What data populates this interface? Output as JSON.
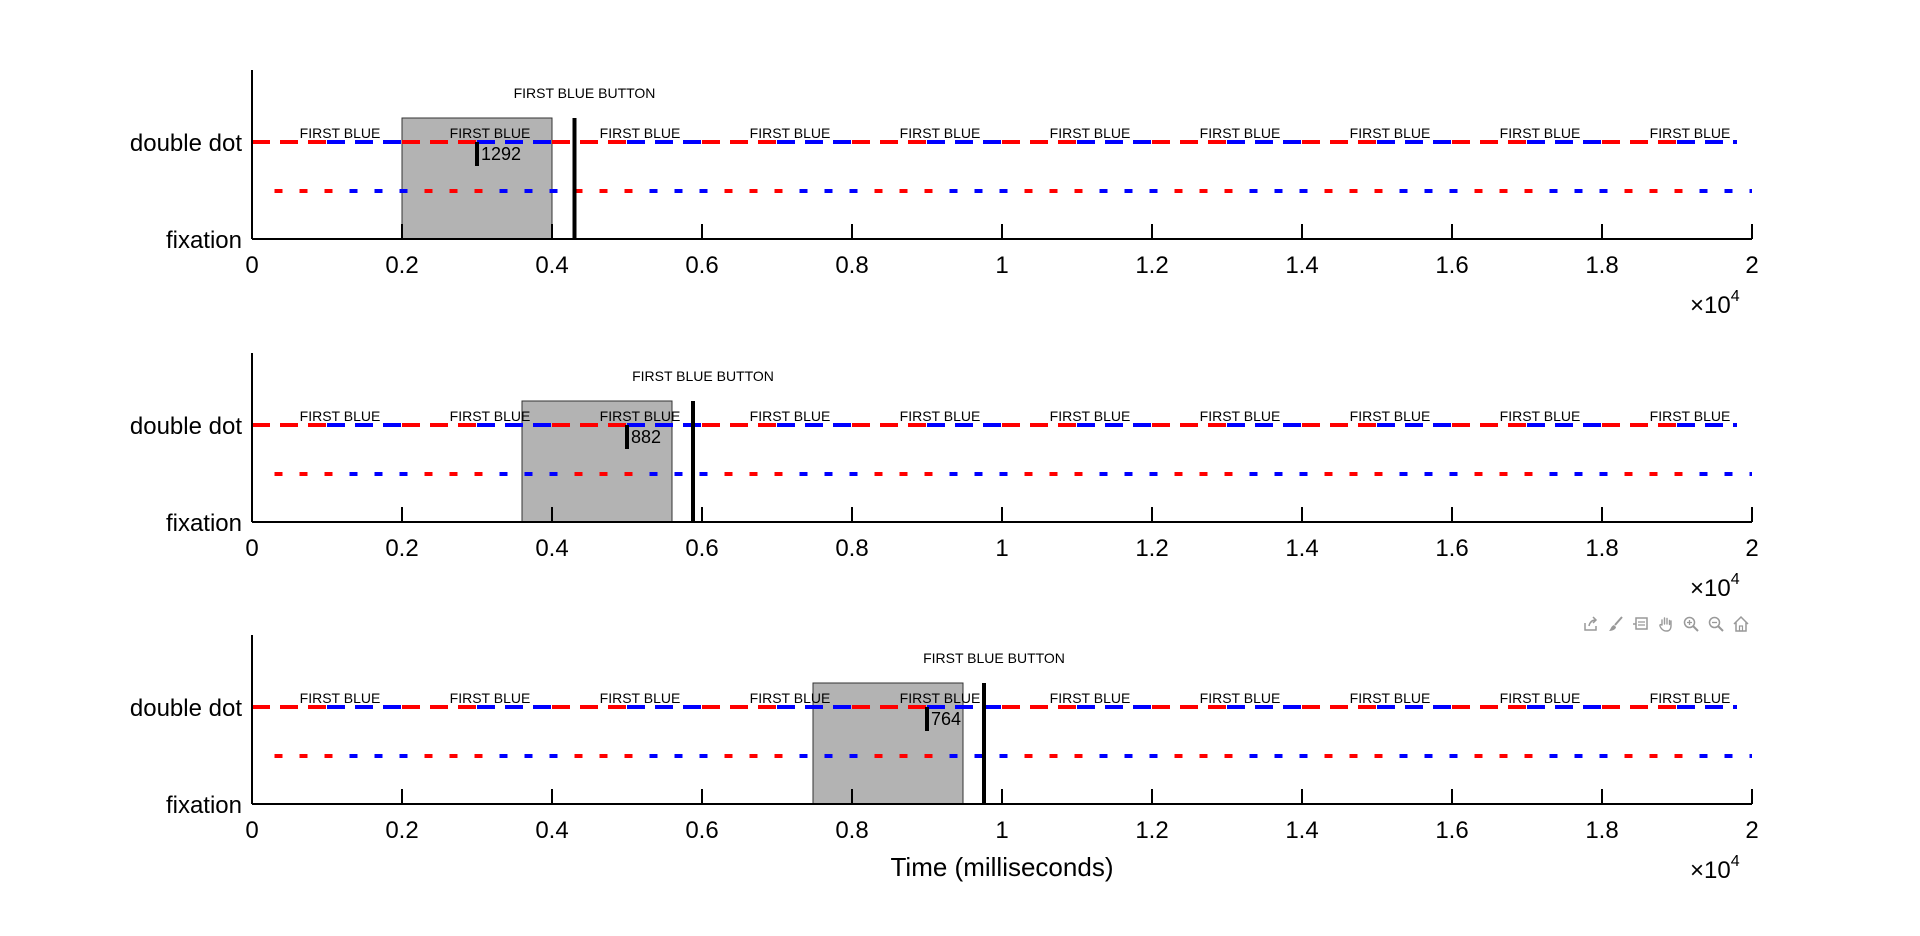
{
  "xlabel": "Time (milliseconds)",
  "exponent_label": "×10",
  "exponent_power": "4",
  "colors": {
    "red": "#ff0000",
    "blue": "#0000ff",
    "highlight": "#b3b3b3",
    "axis": "#000000"
  },
  "toolbar": {
    "icons": [
      "export-icon",
      "brush-icon",
      "datatip-icon",
      "pan-hand-icon",
      "zoom-in-icon",
      "zoom-out-icon",
      "home-icon"
    ]
  },
  "chart_data": [
    {
      "type": "line",
      "xlim": [
        0,
        20000
      ],
      "x_ticks": [
        0,
        2000,
        4000,
        6000,
        8000,
        10000,
        12000,
        14000,
        16000,
        18000,
        20000
      ],
      "x_tick_labels": [
        "0",
        "0.2",
        "0.4",
        "0.6",
        "0.8",
        "1",
        "1.2",
        "1.4",
        "1.6",
        "1.8",
        "2"
      ],
      "y_tick_labels": [
        "fixation",
        "double dot"
      ],
      "y_categories": {
        "fixation": 0,
        "double dot": 2
      },
      "ylim": [
        0,
        2
      ],
      "series": [
        {
          "style": "alternating red/blue dashes",
          "y": 2,
          "x_start": 0,
          "x_end": 19800
        },
        {
          "style": "alternating red/blue dots",
          "y": 1,
          "x_start": 300,
          "x_end": 20000
        }
      ],
      "trial_labels": [
        "FIRST BLUE",
        "FIRST BLUE",
        "FIRST BLUE",
        "FIRST BLUE",
        "FIRST BLUE",
        "FIRST BLUE",
        "FIRST BLUE",
        "FIRST BLUE",
        "FIRST BLUE",
        "FIRST BLUE"
      ],
      "trial_label_x": [
        1200,
        3200,
        5200,
        7200,
        9200,
        11200,
        13200,
        15200,
        17200,
        19200
      ],
      "highlight_window": [
        2000,
        4000
      ],
      "button_press": {
        "x": 4300,
        "label": "FIRST BLUE BUTTON"
      },
      "response_marker": {
        "x": 3000,
        "label": "1292"
      }
    },
    {
      "type": "line",
      "xlim": [
        0,
        20000
      ],
      "x_ticks": [
        0,
        2000,
        4000,
        6000,
        8000,
        10000,
        12000,
        14000,
        16000,
        18000,
        20000
      ],
      "x_tick_labels": [
        "0",
        "0.2",
        "0.4",
        "0.6",
        "0.8",
        "1",
        "1.2",
        "1.4",
        "1.6",
        "1.8",
        "2"
      ],
      "y_tick_labels": [
        "fixation",
        "double dot"
      ],
      "y_categories": {
        "fixation": 0,
        "double dot": 2
      },
      "ylim": [
        0,
        2
      ],
      "series": [
        {
          "style": "alternating red/blue dashes",
          "y": 2,
          "x_start": 0,
          "x_end": 19800
        },
        {
          "style": "alternating red/blue dots",
          "y": 1,
          "x_start": 300,
          "x_end": 20000
        }
      ],
      "trial_labels": [
        "FIRST BLUE",
        "FIRST BLUE",
        "FIRST BLUE",
        "FIRST BLUE",
        "FIRST BLUE",
        "FIRST BLUE",
        "FIRST BLUE",
        "FIRST BLUE",
        "FIRST BLUE",
        "FIRST BLUE"
      ],
      "trial_label_x": [
        1200,
        3200,
        5200,
        7200,
        9200,
        11200,
        13200,
        15200,
        17200,
        19200
      ],
      "highlight_window": [
        3600,
        5600
      ],
      "button_press": {
        "x": 5880,
        "label": "FIRST BLUE BUTTON"
      },
      "response_marker": {
        "x": 5000,
        "label": "882"
      }
    },
    {
      "type": "line",
      "xlim": [
        0,
        20000
      ],
      "x_ticks": [
        0,
        2000,
        4000,
        6000,
        8000,
        10000,
        12000,
        14000,
        16000,
        18000,
        20000
      ],
      "x_tick_labels": [
        "0",
        "0.2",
        "0.4",
        "0.6",
        "0.8",
        "1",
        "1.2",
        "1.4",
        "1.6",
        "1.8",
        "2"
      ],
      "y_tick_labels": [
        "fixation",
        "double dot"
      ],
      "y_categories": {
        "fixation": 0,
        "double dot": 2
      },
      "ylim": [
        0,
        2
      ],
      "series": [
        {
          "style": "alternating red/blue dashes",
          "y": 2,
          "x_start": 0,
          "x_end": 19800
        },
        {
          "style": "alternating red/blue dots",
          "y": 1,
          "x_start": 300,
          "x_end": 20000
        }
      ],
      "trial_labels": [
        "FIRST BLUE",
        "FIRST BLUE",
        "FIRST BLUE",
        "FIRST BLUE",
        "FIRST BLUE",
        "FIRST BLUE",
        "FIRST BLUE",
        "FIRST BLUE",
        "FIRST BLUE",
        "FIRST BLUE"
      ],
      "trial_label_x": [
        1200,
        3200,
        5200,
        7200,
        9200,
        11200,
        13200,
        15200,
        17200,
        19200
      ],
      "highlight_window": [
        7480,
        9480
      ],
      "button_press": {
        "x": 9760,
        "label": "FIRST BLUE BUTTON"
      },
      "response_marker": {
        "x": 9000,
        "label": "764"
      }
    }
  ]
}
